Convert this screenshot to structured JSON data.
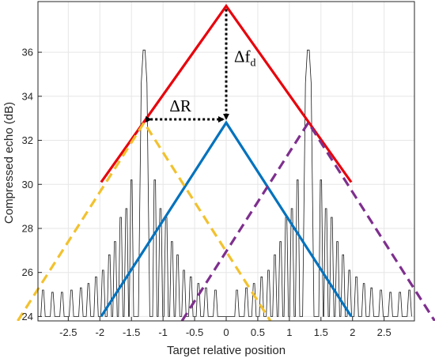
{
  "chart_data": {
    "type": "line",
    "xlabel": "Target relative position",
    "ylabel": "Compressed echo (dB)",
    "xlim": [
      -2.98,
      2.98
    ],
    "ylim": [
      23.8,
      38.3
    ],
    "xticks": [
      -2.5,
      -2,
      -1.5,
      -1,
      -0.5,
      0,
      0.5,
      1,
      1.5,
      2,
      2.5
    ],
    "xtick_labels": [
      "-2.5",
      "-2",
      "-1.5",
      "-1",
      "-0.5",
      "0",
      "0.5",
      "1",
      "1.5",
      "2",
      "2.5"
    ],
    "yticks": [
      24,
      26,
      28,
      30,
      32,
      34,
      36
    ],
    "ytick_labels": [
      "24",
      "26",
      "28",
      "30",
      "32",
      "34",
      "36"
    ],
    "grid": true,
    "series": [
      {
        "color": "#e8000b",
        "style": "solid",
        "x": [
          -1.98,
          0,
          1.98
        ],
        "y": [
          30.1,
          38.1,
          30.1
        ]
      },
      {
        "color": "#0072bd",
        "style": "solid",
        "x": [
          -1.98,
          0,
          1.98
        ],
        "y": [
          24.0,
          32.8,
          24.0
        ]
      },
      {
        "color": "#f2c12e",
        "style": "dashed",
        "x": [
          -3.3,
          -1.3,
          0.7
        ],
        "y": [
          23.8,
          32.8,
          23.8
        ]
      },
      {
        "color": "#7e2f8e",
        "style": "dashed",
        "x": [
          -0.7,
          1.3,
          3.3
        ],
        "y": [
          23.8,
          32.8,
          23.8
        ]
      },
      {
        "color": "#1a1a1a",
        "style": "thin",
        "name_hint": "sinc-like echo, mainlobes at ±1.3",
        "x": [],
        "y": []
      }
    ],
    "echo": {
      "centers": [
        -1.3,
        1.3
      ],
      "peak": 36.1,
      "floor": 24,
      "sidelobes": [
        {
          "pos": -2.9,
          "h": 25.2
        },
        {
          "pos": -2.75,
          "h": 25.1
        },
        {
          "pos": -2.6,
          "h": 25.1
        },
        {
          "pos": -2.45,
          "h": 25.2
        },
        {
          "pos": -2.3,
          "h": 25.3
        },
        {
          "pos": -2.18,
          "h": 25.5
        },
        {
          "pos": -2.06,
          "h": 25.8
        },
        {
          "pos": -1.95,
          "h": 26.1
        },
        {
          "pos": -1.85,
          "h": 26.8
        },
        {
          "pos": -1.76,
          "h": 27.4
        },
        {
          "pos": -1.67,
          "h": 28.5
        },
        {
          "pos": -1.58,
          "h": 28.9
        },
        {
          "pos": -1.5,
          "h": 30.2
        },
        {
          "pos": -1.13,
          "h": 30.2
        },
        {
          "pos": -1.04,
          "h": 28.9
        },
        {
          "pos": -0.95,
          "h": 28.5
        },
        {
          "pos": -0.86,
          "h": 27.4
        },
        {
          "pos": -0.77,
          "h": 26.8
        },
        {
          "pos": -0.67,
          "h": 26.1
        },
        {
          "pos": -0.56,
          "h": 25.8
        },
        {
          "pos": -0.44,
          "h": 25.5
        },
        {
          "pos": -0.32,
          "h": 25.3
        },
        {
          "pos": -0.17,
          "h": 25.2
        },
        {
          "pos": 0.17,
          "h": 25.2
        },
        {
          "pos": 0.32,
          "h": 25.3
        },
        {
          "pos": 0.44,
          "h": 25.5
        },
        {
          "pos": 0.56,
          "h": 25.8
        },
        {
          "pos": 0.67,
          "h": 26.1
        },
        {
          "pos": 0.77,
          "h": 26.8
        },
        {
          "pos": 0.86,
          "h": 27.4
        },
        {
          "pos": 0.95,
          "h": 28.5
        },
        {
          "pos": 1.04,
          "h": 28.9
        },
        {
          "pos": 1.13,
          "h": 30.2
        },
        {
          "pos": 1.5,
          "h": 30.2
        },
        {
          "pos": 1.58,
          "h": 28.9
        },
        {
          "pos": 1.67,
          "h": 28.5
        },
        {
          "pos": 1.76,
          "h": 27.4
        },
        {
          "pos": 1.85,
          "h": 26.8
        },
        {
          "pos": 1.95,
          "h": 26.1
        },
        {
          "pos": 2.06,
          "h": 25.8
        },
        {
          "pos": 2.18,
          "h": 25.5
        },
        {
          "pos": 2.3,
          "h": 25.3
        },
        {
          "pos": 2.45,
          "h": 25.2
        },
        {
          "pos": 2.6,
          "h": 25.1
        },
        {
          "pos": 2.75,
          "h": 25.1
        },
        {
          "pos": 2.9,
          "h": 25.2
        }
      ]
    },
    "annotations": {
      "delta_r": {
        "label": "ΔR",
        "x1": -1.3,
        "x2": 0,
        "y": 32.95
      },
      "delta_fd": {
        "label_main": "Δf",
        "label_sub": "d",
        "x": 0,
        "y1": 38.1,
        "y2": 32.85
      }
    }
  }
}
